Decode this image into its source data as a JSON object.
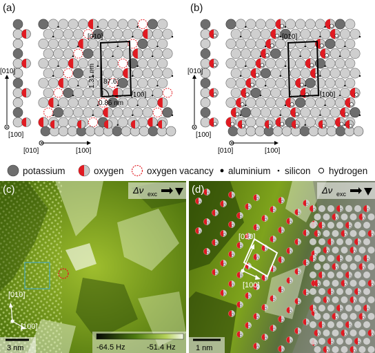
{
  "figure": {
    "panels": [
      {
        "id": "a",
        "label": "(a)",
        "axes": {
          "lattice_top": "[010]",
          "side_left_010": "[010]",
          "side_left_100": "[100]",
          "bottom_010": "[010]",
          "bottom_100": "[100]",
          "cell_010": "[010]",
          "cell_100": "[100]"
        },
        "annotations": {
          "length_a": "1.31 nm",
          "angle": "87.6°",
          "length_b": "0.86 nm"
        }
      },
      {
        "id": "b",
        "label": "(b)",
        "axes": {
          "lattice_top": "[010]",
          "side_left_010": "[010]",
          "side_left_100": "[100]",
          "bottom_010": "[010]",
          "bottom_100": "[100]",
          "cell_100": "[100]"
        }
      },
      {
        "id": "c",
        "label": "(c)",
        "mode": "Δν",
        "mode_sub": "exc",
        "axes": {
          "dir_010": "[010]",
          "dir_100": "[100]"
        },
        "scale_bar": "3 nm",
        "colorbar": {
          "min": "-64.5 Hz",
          "max": "-51.4 Hz"
        }
      },
      {
        "id": "d",
        "label": "(d)",
        "mode": "Δν",
        "mode_sub": "exc",
        "axes": {
          "dir_010": "[010]",
          "dir_100": "[100]"
        },
        "scale_bar": "1 nm"
      }
    ],
    "legend": [
      {
        "name": "potassium",
        "icon": "dark-gray-disc",
        "color": "#6e6e6e"
      },
      {
        "name": "oxygen",
        "icon": "red-gray-half-disc",
        "color": "#e11b22"
      },
      {
        "name": "oxygen vacancy",
        "icon": "dashed-red-circle",
        "color": "#e11b22"
      },
      {
        "name": "aluminium",
        "icon": "black-dot",
        "color": "#000000"
      },
      {
        "name": "silicon",
        "icon": "small-black-dot",
        "color": "#000000"
      },
      {
        "name": "hydrogen",
        "icon": "open-circle",
        "color": "#ffffff"
      }
    ]
  }
}
